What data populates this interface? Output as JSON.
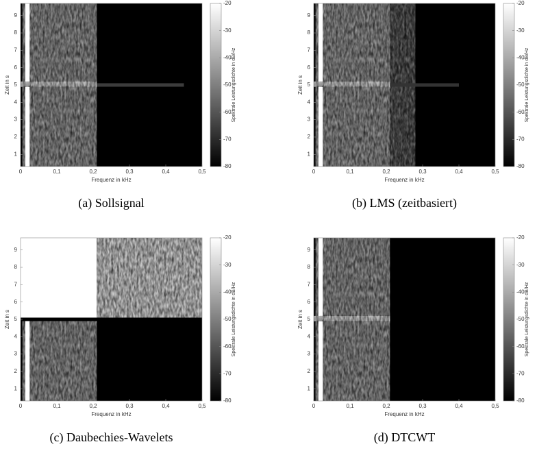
{
  "chart_data": [
    {
      "type": "heatmap",
      "title": "(a) Sollsignal",
      "xlabel": "Frequenz in kHz",
      "ylabel": "Zeit in s",
      "xlim": [
        0,
        0.5
      ],
      "xticks": [
        0,
        {
          "value": 0.1,
          "label": "0,1"
        },
        {
          "value": 0.2,
          "label": "0,2"
        },
        {
          "value": 0.3,
          "label": "0,3"
        },
        {
          "value": 0.4,
          "label": "0,4"
        },
        {
          "value": 0.5,
          "label": "0,5"
        }
      ],
      "ylim": [
        0.3,
        9.7
      ],
      "yticks": [
        1,
        2,
        3,
        4,
        5,
        6,
        7,
        8,
        9
      ],
      "colorbar": {
        "label": "Spektrale Leistungsdichte in dB/Hz",
        "lim": [
          -80,
          -20
        ],
        "ticks": [
          -20,
          -30,
          -40,
          -50,
          -60,
          -70,
          -80
        ]
      },
      "cells": [
        {
          "x": [
            0,
            0.5
          ],
          "y": [
            0.3,
            9.7
          ],
          "value": -80
        },
        {
          "x": [
            0.005,
            0.21
          ],
          "y": [
            0.3,
            9.7
          ],
          "value": -52,
          "noise": true
        },
        {
          "x": [
            0.013,
            0.025
          ],
          "y": [
            0.3,
            9.7
          ],
          "value": -20
        },
        {
          "x": [
            0,
            0.21
          ],
          "y": [
            4.9,
            5.2
          ],
          "value": -38,
          "noise": true
        },
        {
          "x": [
            0.21,
            0.45
          ],
          "y": [
            4.9,
            5.1
          ],
          "value": -66
        }
      ]
    },
    {
      "type": "heatmap",
      "title": "(b) LMS (zeitbasiert)",
      "xlabel": "Frequenz in kHz",
      "ylabel": "Zeit in s",
      "xlim": [
        0,
        0.5
      ],
      "xticks": [
        0,
        {
          "value": 0.1,
          "label": "0,1"
        },
        {
          "value": 0.2,
          "label": "0,2"
        },
        {
          "value": 0.3,
          "label": "0,3"
        },
        {
          "value": 0.4,
          "label": "0,4"
        },
        {
          "value": 0.5,
          "label": "0,5"
        }
      ],
      "ylim": [
        0.3,
        9.7
      ],
      "yticks": [
        1,
        2,
        3,
        4,
        5,
        6,
        7,
        8,
        9
      ],
      "colorbar": {
        "label": "Spektrale Leistungsdichte in dB/Hz",
        "lim": [
          -80,
          -20
        ],
        "ticks": [
          -20,
          -30,
          -40,
          -50,
          -60,
          -70,
          -80
        ]
      },
      "cells": [
        {
          "x": [
            0,
            0.5
          ],
          "y": [
            0.3,
            9.7
          ],
          "value": -80
        },
        {
          "x": [
            0.005,
            0.21
          ],
          "y": [
            0.3,
            9.7
          ],
          "value": -52,
          "noise": true
        },
        {
          "x": [
            0.21,
            0.28
          ],
          "y": [
            0.3,
            9.7
          ],
          "value": -66,
          "noise": true
        },
        {
          "x": [
            0.013,
            0.025
          ],
          "y": [
            0.3,
            9.7
          ],
          "value": -20
        },
        {
          "x": [
            0,
            0.21
          ],
          "y": [
            4.9,
            5.2
          ],
          "value": -38,
          "noise": true
        },
        {
          "x": [
            0.21,
            0.4
          ],
          "y": [
            4.9,
            5.1
          ],
          "value": -68
        }
      ]
    },
    {
      "type": "heatmap",
      "title": "(c) Daubechies-Wavelets",
      "xlabel": "Frequenz in kHz",
      "ylabel": "Zeit in s",
      "xlim": [
        0,
        0.5
      ],
      "xticks": [
        0,
        {
          "value": 0.1,
          "label": "0,1"
        },
        {
          "value": 0.2,
          "label": "0,2"
        },
        {
          "value": 0.3,
          "label": "0,3"
        },
        {
          "value": 0.4,
          "label": "0,4"
        },
        {
          "value": 0.5,
          "label": "0,5"
        }
      ],
      "ylim": [
        0.3,
        9.7
      ],
      "yticks": [
        1,
        2,
        3,
        4,
        5,
        6,
        7,
        8,
        9
      ],
      "colorbar": {
        "label": "Spektrale Leistungsdichte in dB/Hz",
        "lim": [
          -80,
          -20
        ],
        "ticks": [
          -20,
          -30,
          -40,
          -50,
          -60,
          -70,
          -80
        ]
      },
      "cells": [
        {
          "x": [
            0,
            0.5
          ],
          "y": [
            0.3,
            9.7
          ],
          "value": -80
        },
        {
          "x": [
            0.005,
            0.21
          ],
          "y": [
            0.3,
            4.9
          ],
          "value": -52,
          "noise": true
        },
        {
          "x": [
            0.013,
            0.025
          ],
          "y": [
            0.3,
            4.9
          ],
          "value": -20
        },
        {
          "x": [
            0,
            0.21
          ],
          "y": [
            5.1,
            9.7
          ],
          "value": -20
        },
        {
          "x": [
            0.21,
            0.5
          ],
          "y": [
            5.1,
            9.7
          ],
          "value": -36,
          "noise": true
        }
      ]
    },
    {
      "type": "heatmap",
      "title": "(d) DTCWT",
      "xlabel": "Frequenz in kHz",
      "ylabel": "Zeit in s",
      "xlim": [
        0,
        0.5
      ],
      "xticks": [
        0,
        {
          "value": 0.1,
          "label": "0,1"
        },
        {
          "value": 0.2,
          "label": "0,2"
        },
        {
          "value": 0.3,
          "label": "0,3"
        },
        {
          "value": 0.4,
          "label": "0,4"
        },
        {
          "value": 0.5,
          "label": "0,5"
        }
      ],
      "ylim": [
        0.3,
        9.7
      ],
      "yticks": [
        1,
        2,
        3,
        4,
        5,
        6,
        7,
        8,
        9
      ],
      "colorbar": {
        "label": "Spektrale Leistungsdichte in dB/Hz",
        "lim": [
          -80,
          -20
        ],
        "ticks": [
          -20,
          -30,
          -40,
          -50,
          -60,
          -70,
          -80
        ]
      },
      "cells": [
        {
          "x": [
            0,
            0.5
          ],
          "y": [
            0.3,
            9.7
          ],
          "value": -80
        },
        {
          "x": [
            0.005,
            0.21
          ],
          "y": [
            0.3,
            9.7
          ],
          "value": -52,
          "noise": true
        },
        {
          "x": [
            0.013,
            0.025
          ],
          "y": [
            0.3,
            9.7
          ],
          "value": -20
        },
        {
          "x": [
            0,
            0.21
          ],
          "y": [
            4.9,
            5.2
          ],
          "value": -38,
          "noise": true
        }
      ]
    }
  ]
}
